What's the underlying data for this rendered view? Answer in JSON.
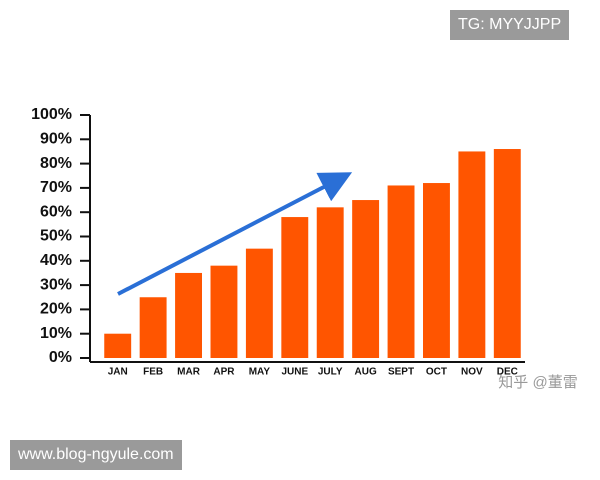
{
  "chart_data": {
    "type": "bar",
    "categories": [
      "JAN",
      "FEB",
      "MAR",
      "APR",
      "MAY",
      "JUNE",
      "JULY",
      "AUG",
      "SEPT",
      "OCT",
      "NOV",
      "DEC"
    ],
    "values": [
      10,
      25,
      35,
      38,
      45,
      58,
      62,
      65,
      71,
      72,
      85,
      86
    ],
    "color": "#ff5500",
    "ylim": [
      0,
      100
    ],
    "yticks": [
      {
        "value": 0,
        "label": "0%"
      },
      {
        "value": 10,
        "label": "10%"
      },
      {
        "value": 20,
        "label": "20%"
      },
      {
        "value": 30,
        "label": "30%"
      },
      {
        "value": 40,
        "label": "40%"
      },
      {
        "value": 50,
        "label": "50%"
      },
      {
        "value": 60,
        "label": "60%"
      },
      {
        "value": 70,
        "label": "70%"
      },
      {
        "value": 80,
        "label": "80%"
      },
      {
        "value": 90,
        "label": "90%"
      },
      {
        "value": 100,
        "label": "100%"
      }
    ],
    "grid": false
  },
  "watermarks": {
    "top": "TG: MYYJJPP",
    "source": "知乎 @董雷",
    "bottom": "www.blog-ngyule.com"
  }
}
